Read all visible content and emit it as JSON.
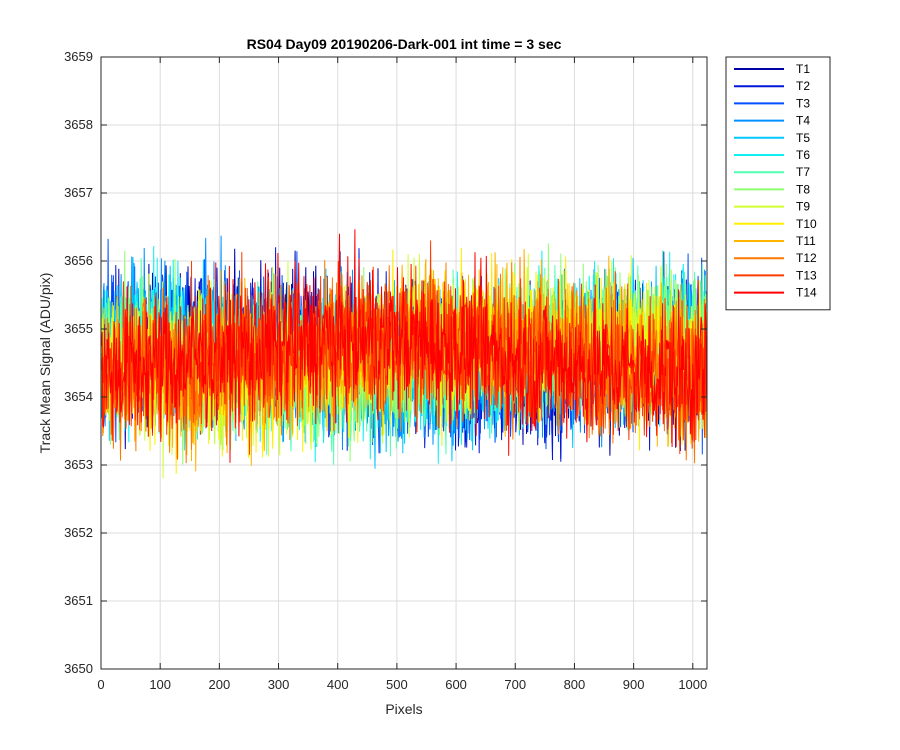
{
  "chart_data": {
    "type": "line",
    "title": "RS04 Day09 20190206-Dark-001 int time = 3 sec",
    "xlabel": "Pixels",
    "ylabel": "Track Mean Signal (ADU/pix)",
    "xlim": [
      0,
      1024
    ],
    "ylim": [
      3650,
      3659
    ],
    "xticks": [
      0,
      100,
      200,
      300,
      400,
      500,
      600,
      700,
      800,
      900,
      1000
    ],
    "yticks": [
      3650,
      3651,
      3652,
      3653,
      3654,
      3655,
      3656,
      3657,
      3658,
      3659
    ],
    "grid": true,
    "legend_position": "outside-top-right",
    "x_points": 1024,
    "series_profile_note_free": true,
    "series": [
      {
        "name": "T1",
        "color": "#0000AA",
        "mean": 3654.6,
        "spread": 1.0
      },
      {
        "name": "T2",
        "color": "#0017D6",
        "mean": 3654.6,
        "spread": 1.0
      },
      {
        "name": "T3",
        "color": "#0050FF",
        "mean": 3654.6,
        "spread": 1.0
      },
      {
        "name": "T4",
        "color": "#0090FF",
        "mean": 3654.6,
        "spread": 1.0
      },
      {
        "name": "T5",
        "color": "#00C8FF",
        "mean": 3654.6,
        "spread": 1.0
      },
      {
        "name": "T6",
        "color": "#10F0F0",
        "mean": 3654.6,
        "spread": 1.0
      },
      {
        "name": "T7",
        "color": "#50FFB0",
        "mean": 3654.6,
        "spread": 1.0
      },
      {
        "name": "T8",
        "color": "#90FF70",
        "mean": 3654.6,
        "spread": 1.0
      },
      {
        "name": "T9",
        "color": "#D0FF30",
        "mean": 3654.6,
        "spread": 1.0
      },
      {
        "name": "T10",
        "color": "#FFF000",
        "mean": 3654.6,
        "spread": 1.0
      },
      {
        "name": "T11",
        "color": "#FFB400",
        "mean": 3654.6,
        "spread": 1.0
      },
      {
        "name": "T12",
        "color": "#FF7800",
        "mean": 3654.6,
        "spread": 1.0
      },
      {
        "name": "T13",
        "color": "#FF3C00",
        "mean": 3654.6,
        "spread": 1.0
      },
      {
        "name": "T14",
        "color": "#FF0000",
        "mean": 3654.6,
        "spread": 1.0
      }
    ]
  }
}
